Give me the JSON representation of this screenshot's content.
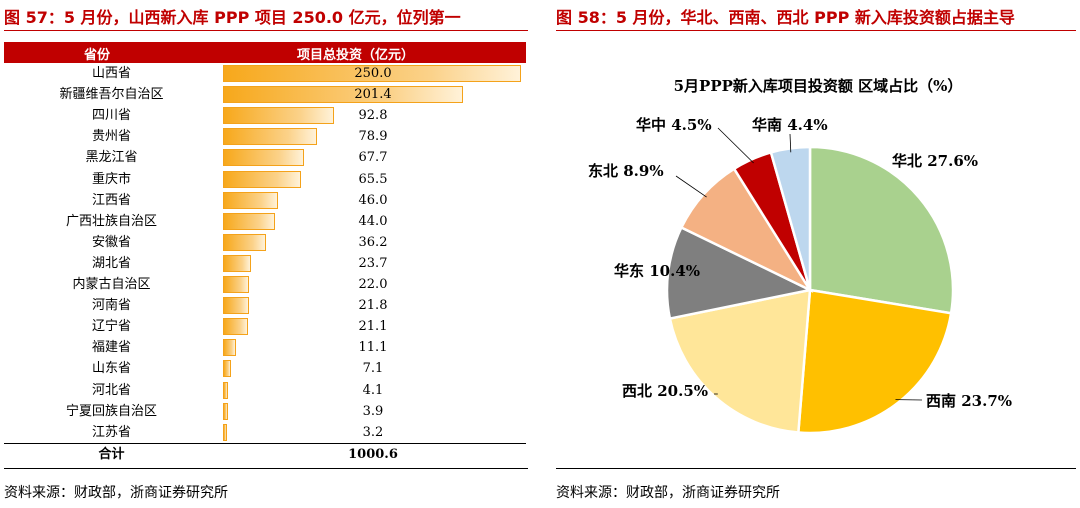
{
  "left": {
    "title": "图 57：5 月份，山西新入库 PPP 项目 250.0 亿元，位列第一",
    "source": "资料来源：财政部，浙商证券研究所"
  },
  "right": {
    "title": "图 58：5 月份，华北、西南、西北 PPP 新入库投资额占据主导",
    "source": "资料来源：财政部，浙商证券研究所"
  },
  "chart_data": [
    {
      "type": "table",
      "columns": [
        "省份",
        "项目总投资（亿元）"
      ],
      "rows": [
        {
          "province": "山西省",
          "value": 250.0,
          "label": "250.0"
        },
        {
          "province": "新疆维吾尔自治区",
          "value": 201.4,
          "label": "201.4"
        },
        {
          "province": "四川省",
          "value": 92.8,
          "label": "92.8"
        },
        {
          "province": "贵州省",
          "value": 78.9,
          "label": "78.9"
        },
        {
          "province": "黑龙江省",
          "value": 67.7,
          "label": "67.7"
        },
        {
          "province": "重庆市",
          "value": 65.5,
          "label": "65.5"
        },
        {
          "province": "江西省",
          "value": 46.0,
          "label": "46.0"
        },
        {
          "province": "广西壮族自治区",
          "value": 44.0,
          "label": "44.0"
        },
        {
          "province": "安徽省",
          "value": 36.2,
          "label": "36.2"
        },
        {
          "province": "湖北省",
          "value": 23.7,
          "label": "23.7"
        },
        {
          "province": "内蒙古自治区",
          "value": 22.0,
          "label": "22.0"
        },
        {
          "province": "河南省",
          "value": 21.8,
          "label": "21.8"
        },
        {
          "province": "辽宁省",
          "value": 21.1,
          "label": "21.1"
        },
        {
          "province": "福建省",
          "value": 11.1,
          "label": "11.1"
        },
        {
          "province": "山东省",
          "value": 7.1,
          "label": "7.1"
        },
        {
          "province": "河北省",
          "value": 4.1,
          "label": "4.1"
        },
        {
          "province": "宁夏回族自治区",
          "value": 3.9,
          "label": "3.9"
        },
        {
          "province": "江苏省",
          "value": 3.2,
          "label": "3.2"
        }
      ],
      "total": {
        "label": "合计",
        "value": "1000.6"
      },
      "bar_max": 250.0
    },
    {
      "type": "pie",
      "title": "5月PPP新入库项目投资额 区域占比（%）",
      "slices": [
        {
          "name": "华北",
          "value": 27.6,
          "label": "华北 27.6%",
          "color": "#a9d18e"
        },
        {
          "name": "西南",
          "value": 23.7,
          "label": "西南 23.7%",
          "color": "#ffc000"
        },
        {
          "name": "西北",
          "value": 20.5,
          "label": "西北 20.5%",
          "color": "#ffe699"
        },
        {
          "name": "华东",
          "value": 10.4,
          "label": "华东 10.4%",
          "color": "#7f7f7f"
        },
        {
          "name": "东北",
          "value": 8.9,
          "label": "东北 8.9%",
          "color": "#f4b183"
        },
        {
          "name": "华中",
          "value": 4.5,
          "label": "华中 4.5%",
          "color": "#c00000"
        },
        {
          "name": "华南",
          "value": 4.4,
          "label": "华南 4.4%",
          "color": "#bdd7ee"
        }
      ]
    }
  ]
}
